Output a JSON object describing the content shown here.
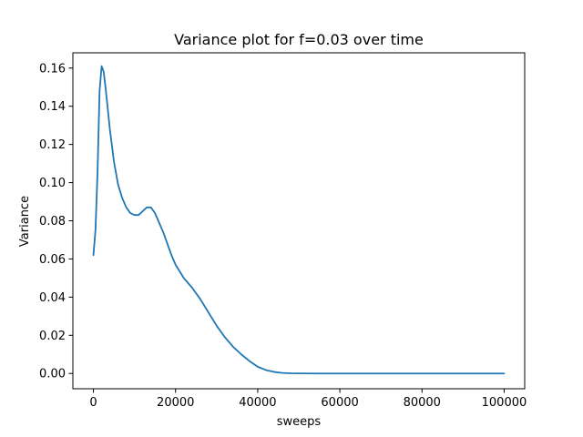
{
  "chart_data": {
    "type": "line",
    "title": "Variance plot for f=0.03 over time",
    "xlabel": "sweeps",
    "ylabel": "Variance",
    "xlim": [
      -5000,
      105000
    ],
    "ylim": [
      -0.008,
      0.168
    ],
    "xticks": [
      0,
      20000,
      40000,
      60000,
      80000,
      100000
    ],
    "xtick_labels": [
      "0",
      "20000",
      "40000",
      "60000",
      "80000",
      "100000"
    ],
    "yticks": [
      0.0,
      0.02,
      0.04,
      0.06,
      0.08,
      0.1,
      0.12,
      0.14,
      0.16
    ],
    "ytick_labels": [
      "0.00",
      "0.02",
      "0.04",
      "0.06",
      "0.08",
      "0.10",
      "0.12",
      "0.14",
      "0.16"
    ],
    "grid": false,
    "series": [
      {
        "color": "#1f77b4",
        "x": [
          0,
          500,
          1000,
          1500,
          2000,
          2500,
          3000,
          4000,
          5000,
          6000,
          7000,
          8000,
          9000,
          10000,
          11000,
          12000,
          13000,
          14000,
          15000,
          16000,
          17000,
          18000,
          19000,
          20000,
          22000,
          24000,
          26000,
          28000,
          30000,
          32000,
          34000,
          36000,
          38000,
          40000,
          42000,
          44000,
          46000,
          48000,
          50000,
          55000,
          60000,
          70000,
          80000,
          90000,
          100000
        ],
        "y": [
          0.062,
          0.075,
          0.105,
          0.148,
          0.161,
          0.158,
          0.149,
          0.128,
          0.111,
          0.099,
          0.092,
          0.087,
          0.084,
          0.083,
          0.083,
          0.085,
          0.087,
          0.087,
          0.084,
          0.079,
          0.074,
          0.068,
          0.062,
          0.057,
          0.05,
          0.045,
          0.039,
          0.032,
          0.025,
          0.019,
          0.014,
          0.01,
          0.0065,
          0.0035,
          0.0018,
          0.0008,
          0.0003,
          0.0001,
          3e-05,
          0.0,
          0.0,
          0.0,
          0.0,
          0.0,
          0.0
        ]
      }
    ]
  }
}
